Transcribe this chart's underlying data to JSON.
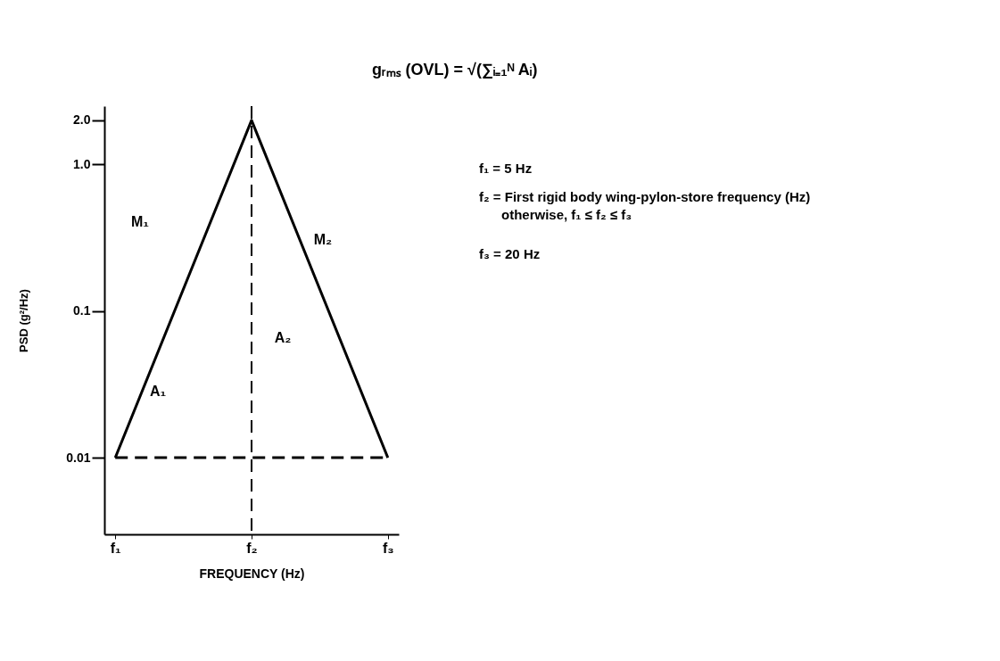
{
  "chart_data": {
    "type": "line",
    "xlabel": "FREQUENCY (Hz)",
    "ylabel": "PSD (g²/Hz)",
    "log": "y",
    "categories": [
      "f₁",
      "f₂",
      "f₃"
    ],
    "ylim": [
      0.003,
      2.5
    ],
    "yticks": [
      0.01,
      0.1,
      {
        "value": 1,
        "label": "1.0"
      },
      {
        "value": 2,
        "label": "2.0"
      }
    ],
    "grid": false,
    "marker": "none",
    "series": [
      {
        "color": "#000000",
        "values": [
          0.01,
          2.0,
          0.01
        ],
        "line_style": "solid"
      },
      {
        "color": "#000000",
        "values": [
          0.01,
          0.01,
          0.01
        ],
        "line_style": "dashed"
      }
    ],
    "ref_lines": [
      {
        "axis": "x",
        "value": "f₂",
        "color": "#000000",
        "line_style": "dashed"
      }
    ],
    "annotations": [
      "gᵣₘₛ (OVL) = √(∑ᵢ₌₁ᴺ Aᵢ)",
      "M₁",
      "M₂",
      "A₁",
      "A₂",
      "f₁ = 5 Hz",
      "f₂ = First rigid body wing-pylon-store frequency (Hz)",
      "otherwise, f₁ ≤ f₂ ≤ f₃",
      "f₃ = 20 Hz"
    ]
  }
}
